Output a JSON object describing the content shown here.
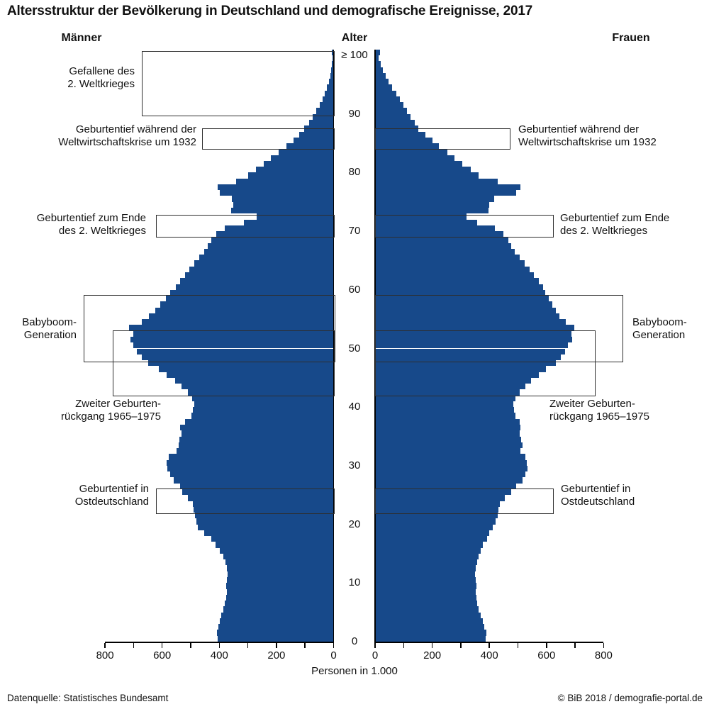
{
  "title": "Altersstruktur der Bevölkerung in Deutschland und demografische Ereignisse, 2017",
  "header": {
    "left": "Männer",
    "center": "Alter",
    "right": "Frauen"
  },
  "axis": {
    "xlabel": "Personen in 1.000",
    "x_major_ticks": [
      0,
      200,
      400,
      600,
      800
    ],
    "x_minor_step": 100,
    "x_max": 800,
    "age_ticks": [
      0,
      10,
      20,
      30,
      40,
      50,
      60,
      70,
      80,
      90
    ],
    "age_top_label": "≥ 100"
  },
  "footer": {
    "source": "Datenquelle: Statistisches Bundesamt",
    "credit": "© BiB 2018 / demografie-portal.de"
  },
  "colors": {
    "bar": "#17498a",
    "box_border": "#2e2e2e",
    "axis": "#000000"
  },
  "chart_data": {
    "type": "bar",
    "variant": "population-pyramid",
    "unit": "Personen in 1.000",
    "age_range": "0 bis 100+ (oberster Balken = 100 und älter), 1-Jahres-Schritte",
    "xlim": [
      0,
      800
    ],
    "series": [
      {
        "name": "Männer",
        "side": "left",
        "values_by_age_0_to_100plus": [
          405,
          408,
          402,
          398,
          393,
          385,
          380,
          376,
          373,
          377,
          374,
          371,
          374,
          379,
          387,
          398,
          412,
          428,
          452,
          474,
          481,
          486,
          489,
          492,
          510,
          529,
          537,
          560,
          572,
          582,
          585,
          578,
          550,
          543,
          539,
          532,
          536,
          520,
          498,
          492,
          488,
          494,
          510,
          533,
          555,
          584,
          612,
          648,
          671,
          688,
          700,
          710,
          700,
          716,
          672,
          647,
          624,
          607,
          588,
          571,
          553,
          536,
          520,
          504,
          488,
          469,
          452,
          441,
          428,
          410,
          382,
          315,
          268,
          358,
          352,
          355,
          398,
          405,
          340,
          300,
          271,
          244,
          220,
          192,
          165,
          141,
          120,
          103,
          86,
          73,
          60,
          48,
          38,
          30,
          23,
          17,
          12,
          8,
          5,
          3,
          5
        ]
      },
      {
        "name": "Frauen",
        "side": "right",
        "values_by_age_0_to_100plus": [
          386,
          389,
          382,
          377,
          370,
          362,
          358,
          355,
          352,
          355,
          352,
          350,
          353,
          358,
          362,
          369,
          378,
          391,
          400,
          413,
          423,
          429,
          432,
          437,
          455,
          477,
          493,
          517,
          526,
          533,
          530,
          526,
          509,
          515,
          512,
          506,
          509,
          505,
          491,
          487,
          485,
          492,
          505,
          525,
          545,
          572,
          599,
          632,
          651,
          664,
          675,
          690,
          688,
          697,
          667,
          644,
          632,
          620,
          607,
          596,
          588,
          572,
          556,
          540,
          524,
          505,
          490,
          477,
          466,
          450,
          420,
          358,
          319,
          398,
          400,
          418,
          495,
          508,
          430,
          363,
          334,
          306,
          279,
          252,
          223,
          200,
          176,
          152,
          138,
          124,
          112,
          100,
          88,
          74,
          60,
          48,
          38,
          28,
          20,
          12,
          17
        ]
      }
    ],
    "annotations": [
      {
        "id": "gefallene-ww2",
        "lines": [
          "Gefallene des",
          "2. Weltkrieges"
        ],
        "sides": [
          "left"
        ],
        "age_lo": 89.8,
        "age_hi": 100.7,
        "extent_left_k": 672,
        "extent_right_k": 0
      },
      {
        "id": "geburtentief-1932",
        "lines": [
          "Geburtentief während der",
          "Weltwirtschaftskrise um 1932"
        ],
        "sides": [
          "left",
          "right"
        ],
        "age_lo": 84.2,
        "age_hi": 87.6,
        "extent_left_k": 461,
        "extent_right_k": 469
      },
      {
        "id": "geburtentief-ww2-ende",
        "lines": [
          "Geburtentief zum Ende",
          "des 2. Weltkrieges"
        ],
        "sides": [
          "left",
          "right"
        ],
        "age_lo": 69.2,
        "age_hi": 72.8,
        "extent_left_k": 622,
        "extent_right_k": 620
      },
      {
        "id": "babyboom",
        "lines": [
          "Babyboom-",
          "Generation"
        ],
        "sides": [
          "left",
          "right"
        ],
        "age_lo": 47.9,
        "age_hi": 59.1,
        "extent_left_k": 875,
        "extent_right_k": 863
      },
      {
        "id": "zweiter-geburtenrueckgang",
        "lines": [
          "Zweiter Geburten-",
          "rückgang 1965–1975"
        ],
        "sides": [
          "left",
          "right"
        ],
        "age_lo": 42.1,
        "age_hi": 53.1,
        "extent_left_k": 774,
        "extent_right_k": 766
      },
      {
        "id": "geburtentief-ost",
        "lines": [
          "Geburtentief in",
          "Ostdeutschland"
        ],
        "sides": [
          "left",
          "right"
        ],
        "age_lo": 22.0,
        "age_hi": 26.1,
        "extent_left_k": 622,
        "extent_right_k": 620
      }
    ]
  }
}
